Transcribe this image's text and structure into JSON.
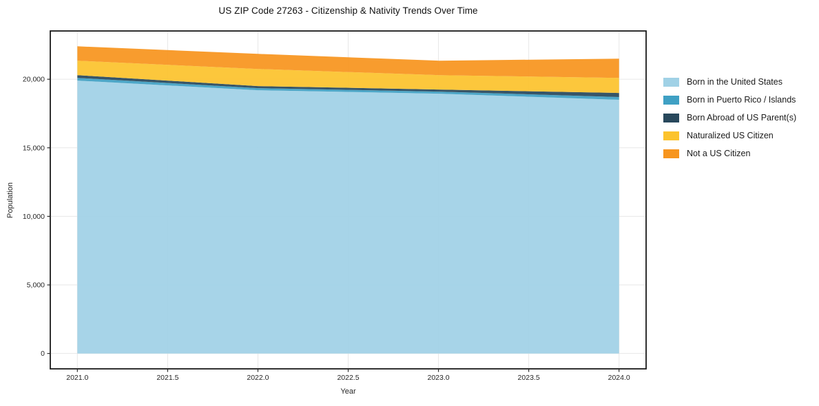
{
  "chart_data": {
    "type": "area",
    "stacked": true,
    "title": "US ZIP Code 27263 - Citizenship & Nativity Trends Over Time",
    "xlabel": "Year",
    "ylabel": "Population",
    "x": [
      2021,
      2022,
      2023,
      2024
    ],
    "series": [
      {
        "name": "Born in the United States",
        "color": "#a0d1e6",
        "values": [
          19900,
          19200,
          18950,
          18500
        ]
      },
      {
        "name": "Born in Puerto Rico / Islands",
        "color": "#3fa0c4",
        "values": [
          200,
          150,
          150,
          200
        ]
      },
      {
        "name": "Born Abroad of US Parent(s)",
        "color": "#28485c",
        "values": [
          200,
          150,
          150,
          300
        ]
      },
      {
        "name": "Naturalized US Citizen",
        "color": "#fcc32d",
        "values": [
          1050,
          1250,
          1050,
          1100
        ]
      },
      {
        "name": "Not a US Citizen",
        "color": "#f7951e",
        "values": [
          1050,
          1100,
          1050,
          1400
        ]
      }
    ],
    "totals": [
      22400,
      21850,
      21350,
      21500
    ],
    "xticks": [
      2021.0,
      2021.5,
      2022.0,
      2022.5,
      2023.0,
      2023.5,
      2024.0
    ],
    "xtick_labels": [
      "2021.0",
      "2021.5",
      "2022.0",
      "2022.5",
      "2023.0",
      "2023.5",
      "2024.0"
    ],
    "yticks": [
      0,
      5000,
      10000,
      15000,
      20000
    ],
    "ytick_labels": [
      "0",
      "5,000",
      "10,000",
      "15,000",
      "20,000"
    ],
    "xlim": [
      2020.85,
      2024.15
    ],
    "ylim": [
      -1120,
      23520
    ],
    "grid": true,
    "grid_color": "#e7e7e7",
    "spine_color": "#1a1a1a",
    "tick_color": "#262626",
    "legend_position": "right-outside"
  }
}
